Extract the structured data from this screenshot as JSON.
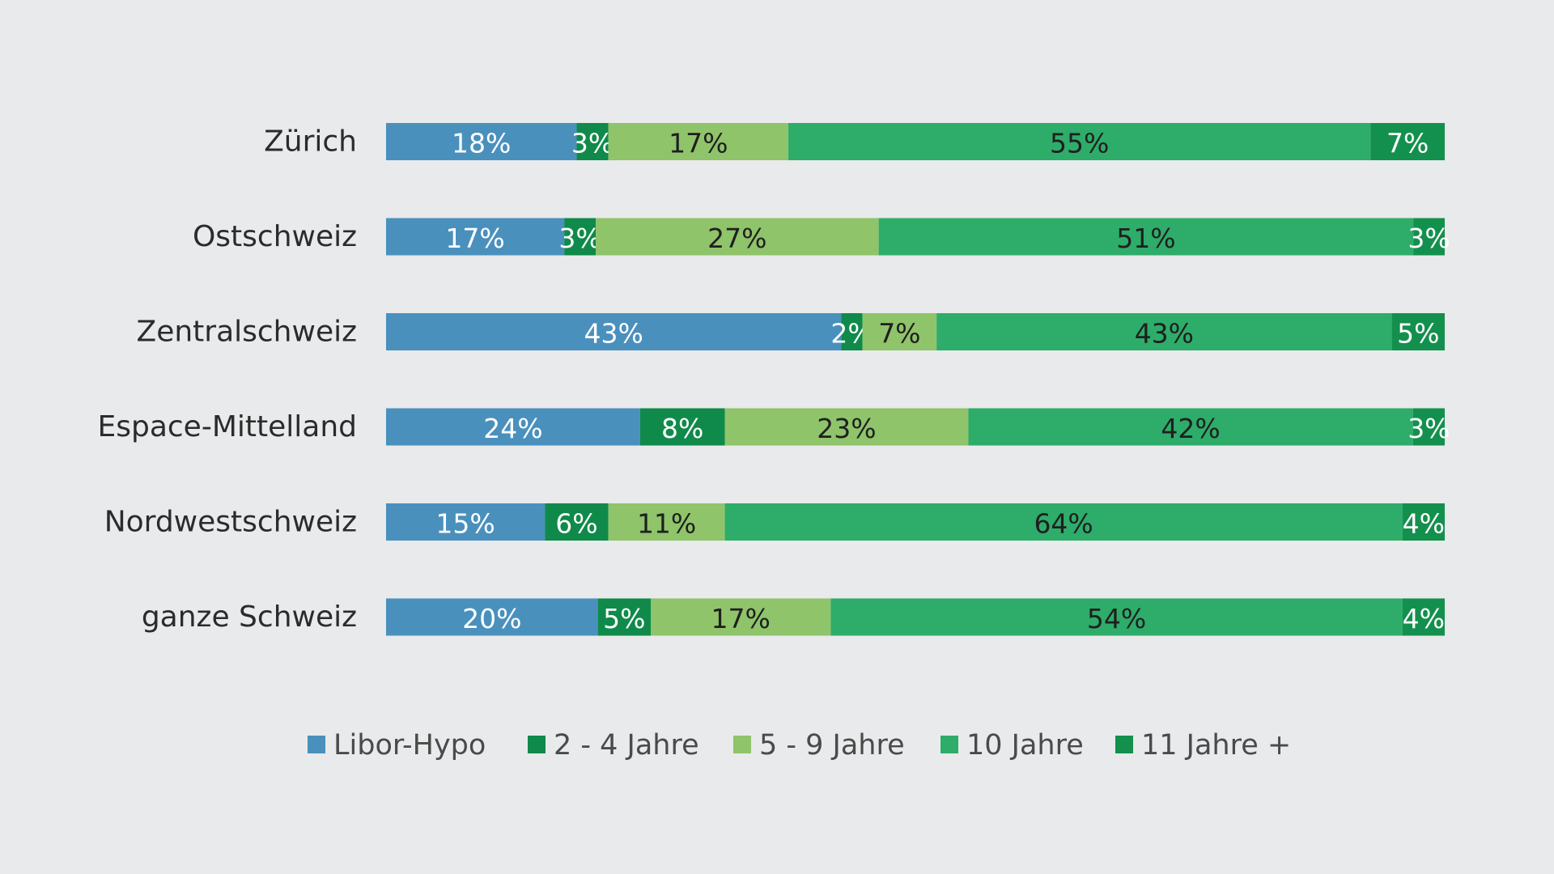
{
  "chart_data": {
    "type": "bar",
    "orientation": "horizontal",
    "stacked": true,
    "title": "",
    "xlabel": "",
    "ylabel": "",
    "xlim": [
      0,
      100
    ],
    "grid": false,
    "legend_position": "bottom",
    "categories": [
      "Zürich",
      "Ostschweiz",
      "Zentralschweiz",
      "Espace-Mittelland",
      "Nordwestschweiz",
      "ganze Schweiz"
    ],
    "series": [
      {
        "name": "Libor-Hypo",
        "color": "#4a90bd",
        "label_color": "#ffffff",
        "values": [
          18,
          17,
          43,
          24,
          15,
          20
        ],
        "labels": [
          "18%",
          "17%",
          "43%",
          "24%",
          "15%",
          "20%"
        ]
      },
      {
        "name": "2 - 4 Jahre",
        "color": "#0f8a4a",
        "label_color": "#ffffff",
        "values": [
          3,
          3,
          2,
          8,
          6,
          5
        ],
        "labels": [
          "3%",
          "3%",
          "2%",
          "8%",
          "6%",
          "5%"
        ]
      },
      {
        "name": "5 - 9 Jahre",
        "color": "#8fc46a",
        "label_color": "#1f1f1f",
        "values": [
          17,
          27,
          7,
          23,
          11,
          17
        ],
        "labels": [
          "17%",
          "27%",
          "7%",
          "23%",
          "11%",
          "17%"
        ]
      },
      {
        "name": "10 Jahre",
        "color": "#2eac6a",
        "label_color": "#1f1f1f",
        "values": [
          55,
          51,
          43,
          42,
          64,
          54
        ],
        "labels": [
          "55%",
          "51%",
          "43%",
          "42%",
          "64%",
          "54%"
        ]
      },
      {
        "name": "11 Jahre +",
        "color": "#13904d",
        "label_color": "#ffffff",
        "values": [
          7,
          3,
          5,
          3,
          4,
          4
        ],
        "labels": [
          "7%",
          "3%",
          "5%",
          "3%",
          "4%",
          "4%"
        ]
      }
    ]
  }
}
